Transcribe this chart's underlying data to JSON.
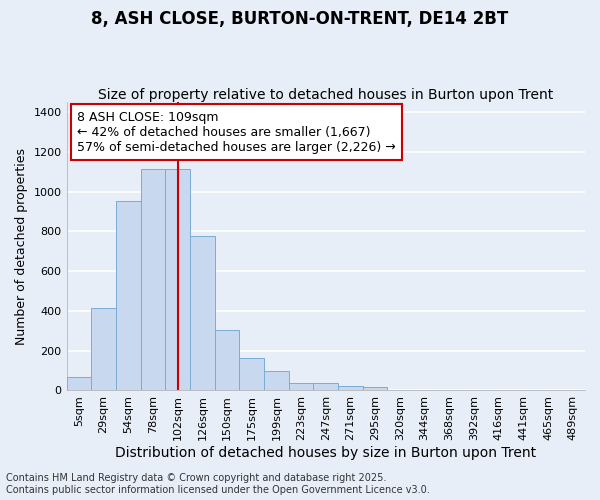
{
  "title": "8, ASH CLOSE, BURTON-ON-TRENT, DE14 2BT",
  "subtitle": "Size of property relative to detached houses in Burton upon Trent",
  "xlabel": "Distribution of detached houses by size in Burton upon Trent",
  "ylabel": "Number of detached properties",
  "bar_color": "#c8d8ee",
  "bar_edge_color": "#7aacd4",
  "background_color": "#e8eef8",
  "grid_color": "#ffffff",
  "categories": [
    "5sqm",
    "29sqm",
    "54sqm",
    "78sqm",
    "102sqm",
    "126sqm",
    "150sqm",
    "175sqm",
    "199sqm",
    "223sqm",
    "247sqm",
    "271sqm",
    "295sqm",
    "320sqm",
    "344sqm",
    "368sqm",
    "392sqm",
    "416sqm",
    "441sqm",
    "465sqm",
    "489sqm"
  ],
  "values": [
    70,
    415,
    950,
    1115,
    1115,
    775,
    305,
    165,
    100,
    35,
    35,
    20,
    15,
    0,
    0,
    0,
    0,
    0,
    0,
    0,
    0
  ],
  "vline_x_index": 4,
  "vline_color": "#cc0000",
  "annotation_line1": "8 ASH CLOSE: 109sqm",
  "annotation_line2": "← 42% of detached houses are smaller (1,667)",
  "annotation_line3": "57% of semi-detached houses are larger (2,226) →",
  "annotation_box_color": "#ffffff",
  "annotation_box_edge_color": "#cc0000",
  "ylim": [
    0,
    1450
  ],
  "yticks": [
    0,
    200,
    400,
    600,
    800,
    1000,
    1200,
    1400
  ],
  "footer": "Contains HM Land Registry data © Crown copyright and database right 2025.\nContains public sector information licensed under the Open Government Licence v3.0.",
  "title_fontsize": 12,
  "subtitle_fontsize": 10,
  "xlabel_fontsize": 10,
  "ylabel_fontsize": 9,
  "tick_fontsize": 8,
  "annotation_fontsize": 9,
  "footer_fontsize": 7
}
